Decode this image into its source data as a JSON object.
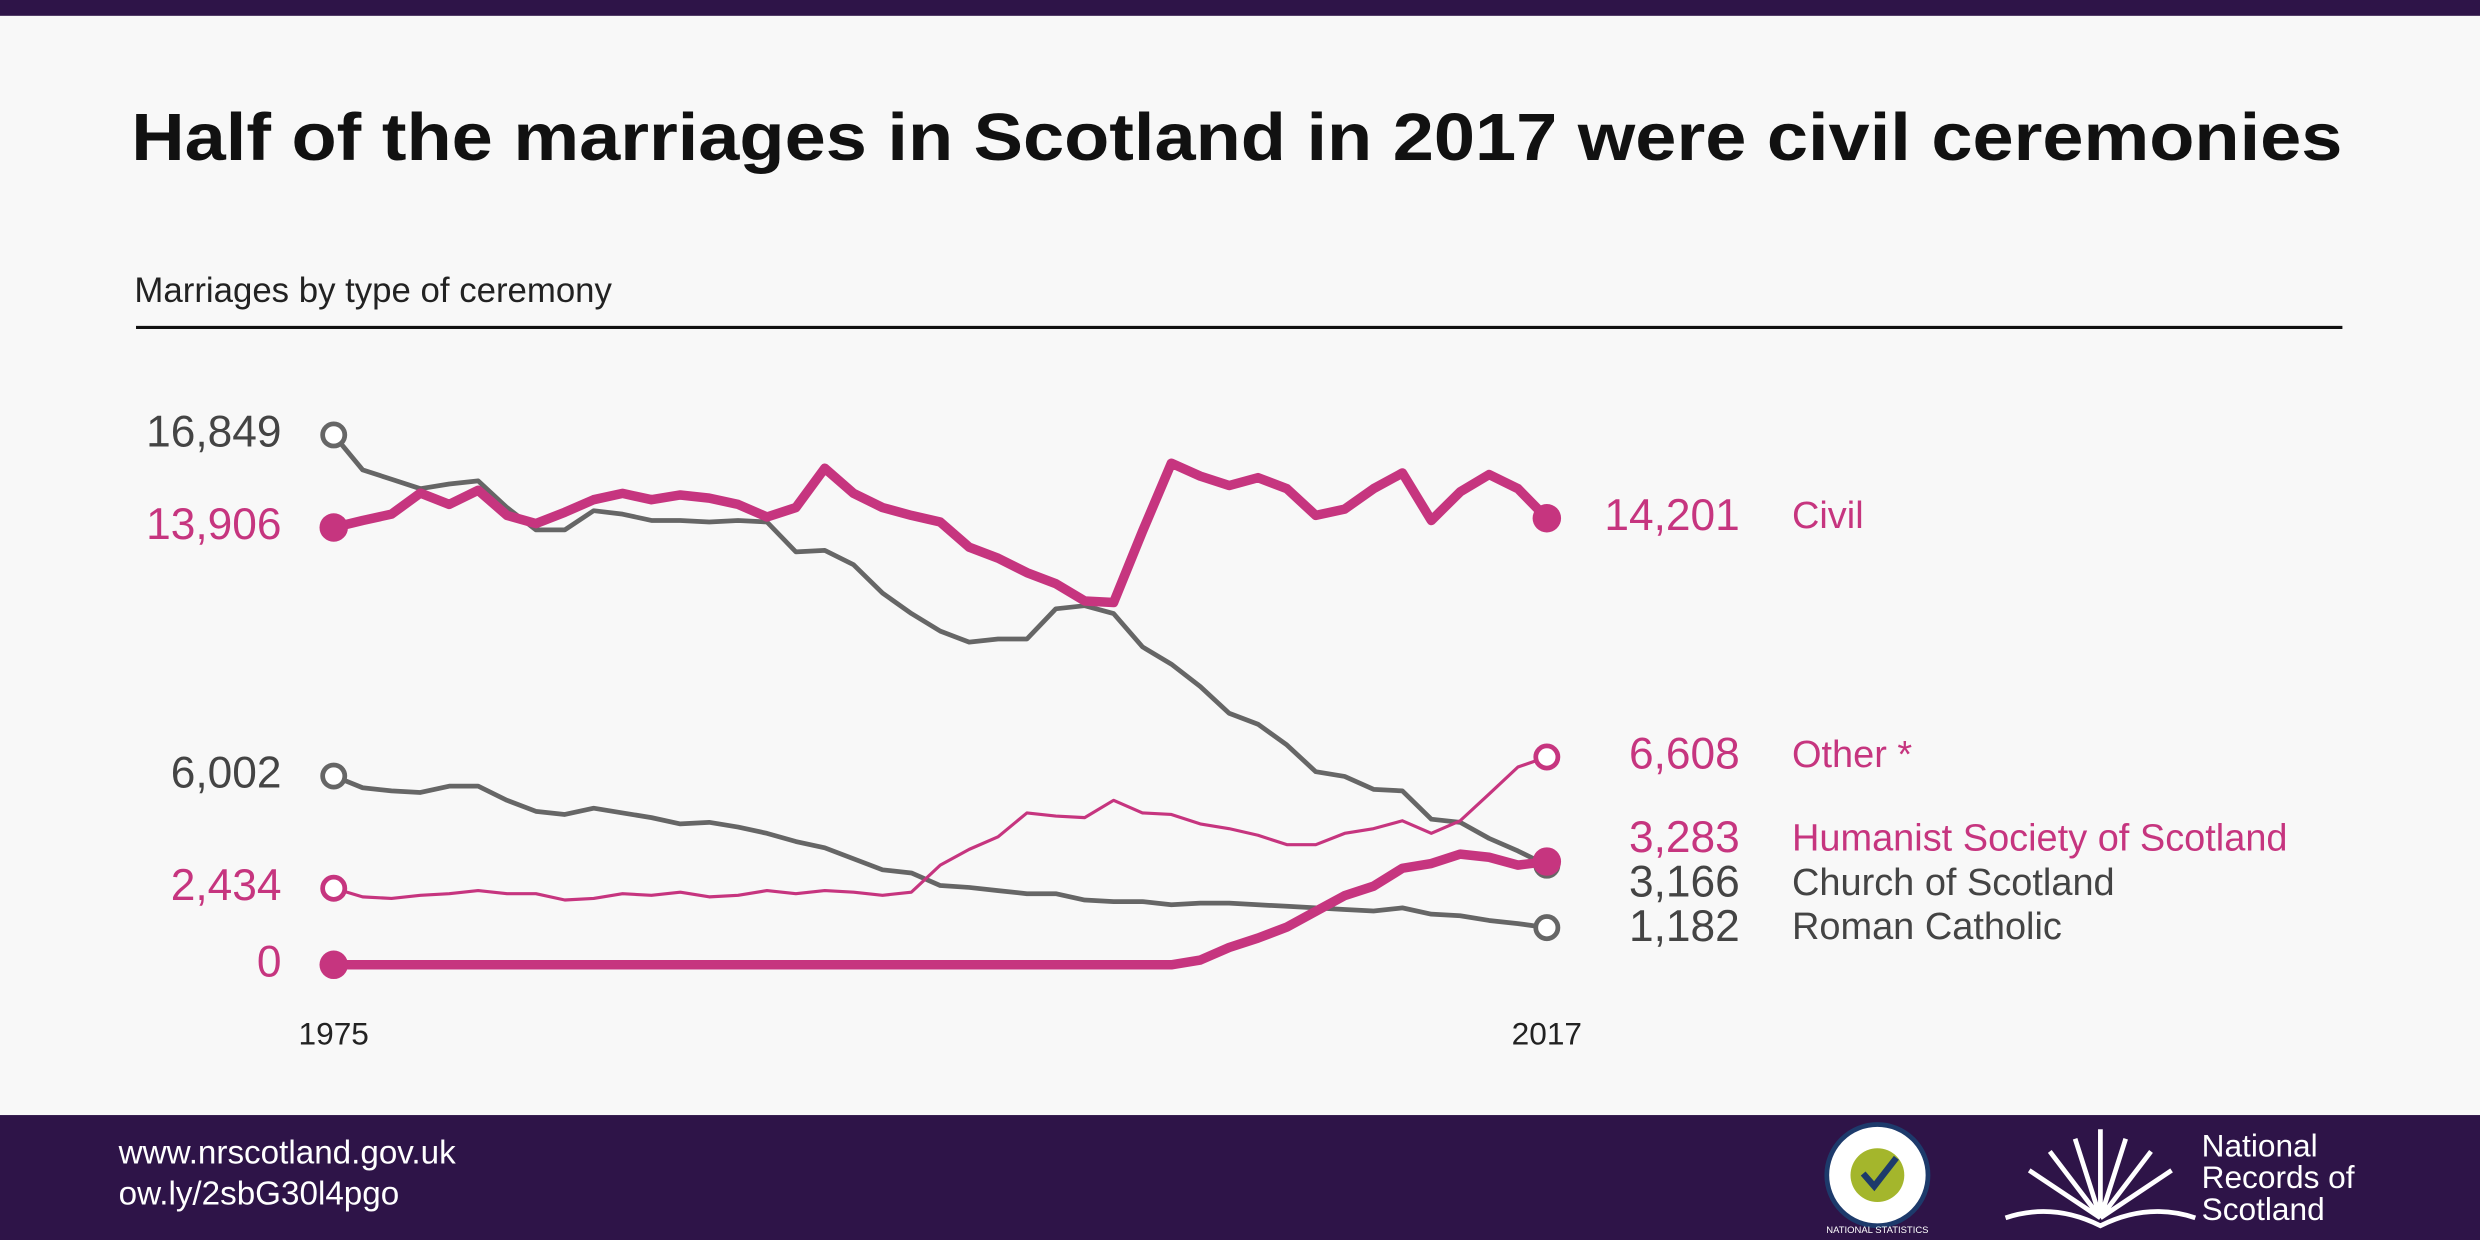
{
  "chart_data": {
    "type": "line",
    "title": "Half of the marriages in Scotland in 2017 were civil ceremonies",
    "subtitle": "Marriages by type of ceremony",
    "x": [
      1975,
      1976,
      1977,
      1978,
      1979,
      1980,
      1981,
      1982,
      1983,
      1984,
      1985,
      1986,
      1987,
      1988,
      1989,
      1990,
      1991,
      1992,
      1993,
      1994,
      1995,
      1996,
      1997,
      1998,
      1999,
      2000,
      2001,
      2002,
      2003,
      2004,
      2005,
      2006,
      2007,
      2008,
      2009,
      2010,
      2011,
      2012,
      2013,
      2014,
      2015,
      2016,
      2017
    ],
    "xlim": [
      1975,
      2017
    ],
    "xticks": [
      1975,
      2017
    ],
    "ylim": [
      0,
      16849
    ],
    "series": [
      {
        "name": "Church of Scotland",
        "color": "#666666",
        "label_color": "#444444",
        "marker": "open",
        "line_style": "medium",
        "values": [
          16849,
          15740,
          15440,
          15140,
          15290,
          15390,
          14540,
          13830,
          13830,
          14440,
          14330,
          14130,
          14130,
          14080,
          14130,
          14080,
          13130,
          13180,
          12720,
          11820,
          11170,
          10610,
          10260,
          10360,
          10360,
          11320,
          11420,
          11170,
          10110,
          9560,
          8850,
          8000,
          7650,
          6990,
          6140,
          5990,
          5580,
          5530,
          4630,
          4530,
          4020,
          3620,
          3166
        ],
        "value_labels": [
          "16,849",
          null,
          null,
          null,
          null,
          null,
          null,
          null,
          null,
          null,
          null,
          null,
          null,
          null,
          null,
          null,
          null,
          null,
          null,
          null,
          null,
          null,
          null,
          null,
          null,
          null,
          null,
          null,
          null,
          null,
          null,
          null,
          null,
          null,
          null,
          null,
          null,
          null,
          null,
          null,
          null,
          null,
          "3,166"
        ]
      },
      {
        "name": "Roman Catholic",
        "color": "#666666",
        "label_color": "#444444",
        "marker": "open",
        "line_style": "medium",
        "values": [
          6002,
          5630,
          5530,
          5480,
          5680,
          5680,
          5230,
          4880,
          4780,
          4980,
          4830,
          4680,
          4480,
          4530,
          4380,
          4180,
          3920,
          3720,
          3370,
          3020,
          2920,
          2520,
          2460,
          2360,
          2260,
          2260,
          2060,
          2010,
          2010,
          1910,
          1960,
          1960,
          1910,
          1860,
          1810,
          1760,
          1710,
          1810,
          1610,
          1560,
          1410,
          1310,
          1182
        ],
        "value_labels": [
          "6,002",
          null,
          null,
          null,
          null,
          null,
          null,
          null,
          null,
          null,
          null,
          null,
          null,
          null,
          null,
          null,
          null,
          null,
          null,
          null,
          null,
          null,
          null,
          null,
          null,
          null,
          null,
          null,
          null,
          null,
          null,
          null,
          null,
          null,
          null,
          null,
          null,
          null,
          null,
          null,
          null,
          null,
          "1,182"
        ]
      },
      {
        "name": "Other *",
        "color": "#c6357f",
        "label_color": "#c6357f",
        "marker": "open",
        "line_style": "thin",
        "values": [
          2434,
          2160,
          2110,
          2210,
          2260,
          2360,
          2260,
          2260,
          2060,
          2110,
          2260,
          2210,
          2310,
          2160,
          2210,
          2360,
          2260,
          2360,
          2310,
          2210,
          2310,
          3170,
          3670,
          4070,
          4830,
          4730,
          4680,
          5230,
          4830,
          4780,
          4480,
          4330,
          4120,
          3820,
          3820,
          4180,
          4330,
          4580,
          4180,
          4580,
          5430,
          6290,
          6608
        ],
        "value_labels": [
          "2,434",
          null,
          null,
          null,
          null,
          null,
          null,
          null,
          null,
          null,
          null,
          null,
          null,
          null,
          null,
          null,
          null,
          null,
          null,
          null,
          null,
          null,
          null,
          null,
          null,
          null,
          null,
          null,
          null,
          null,
          null,
          null,
          null,
          null,
          null,
          null,
          null,
          null,
          null,
          null,
          null,
          null,
          "6,608"
        ]
      },
      {
        "name": "Humanist Society of Scotland",
        "color": "#c6357f",
        "label_color": "#c6357f",
        "marker": "filled",
        "line_style": "thick",
        "values": [
          0,
          0,
          0,
          0,
          0,
          0,
          0,
          0,
          0,
          0,
          0,
          0,
          0,
          0,
          0,
          0,
          0,
          0,
          0,
          0,
          0,
          0,
          0,
          0,
          0,
          0,
          0,
          0,
          0,
          0,
          150,
          550,
          850,
          1200,
          1700,
          2200,
          2500,
          3070,
          3220,
          3520,
          3420,
          3170,
          3283
        ],
        "value_labels": [
          null,
          null,
          null,
          null,
          null,
          null,
          null,
          null,
          null,
          null,
          null,
          null,
          null,
          null,
          null,
          null,
          null,
          null,
          null,
          null,
          null,
          null,
          null,
          null,
          null,
          null,
          null,
          null,
          null,
          null,
          null,
          null,
          null,
          null,
          null,
          null,
          null,
          null,
          null,
          null,
          null,
          null,
          "3,283"
        ]
      },
      {
        "name": "Civil",
        "color": "#c6357f",
        "label_color": "#c6357f",
        "marker": "filled",
        "line_style": "thick",
        "values": [
          13906,
          14130,
          14330,
          15000,
          14640,
          15090,
          14290,
          14030,
          14390,
          14790,
          14990,
          14790,
          14940,
          14840,
          14640,
          14240,
          14540,
          15790,
          14990,
          14540,
          14290,
          14080,
          13280,
          12930,
          12470,
          12120,
          11570,
          11520,
          13780,
          15950,
          15540,
          15240,
          15490,
          15140,
          14290,
          14490,
          15140,
          15640,
          14130,
          15040,
          15590,
          15140,
          14201
        ],
        "value_labels": [
          "13,906",
          null,
          null,
          null,
          null,
          null,
          null,
          null,
          null,
          null,
          null,
          null,
          null,
          null,
          null,
          null,
          null,
          null,
          null,
          null,
          null,
          null,
          null,
          null,
          null,
          null,
          null,
          null,
          null,
          null,
          null,
          null,
          null,
          null,
          null,
          null,
          null,
          null,
          null,
          null,
          null,
          null,
          "14,201"
        ]
      }
    ]
  },
  "footer": {
    "links": [
      "www.nrscotland.gov.uk",
      "ow.ly/2sbG30l4pgo"
    ],
    "ns_logo": "NATIONAL STATISTICS",
    "nrs_logo": [
      "National",
      "Records of",
      "Scotland"
    ]
  }
}
